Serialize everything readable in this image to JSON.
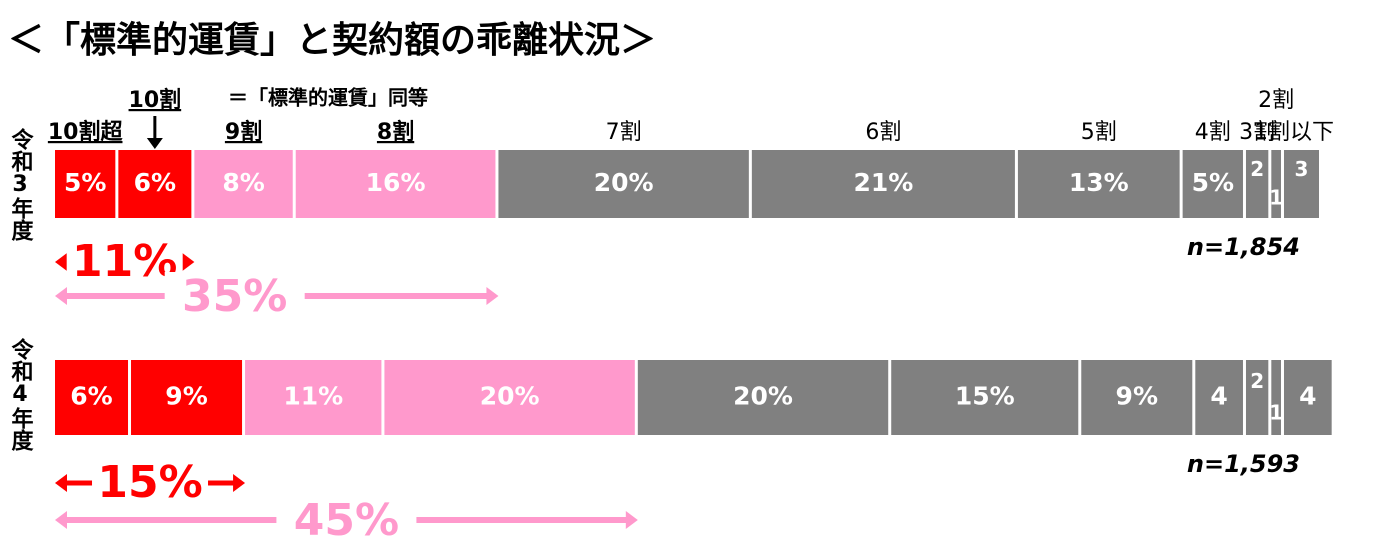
{
  "chart_data": {
    "type": "stacked-bar",
    "title": "＜「標準的運賃」と契約額の乖離状況＞",
    "note": "＝「標準的運賃」同等",
    "categories": [
      "10割超",
      "10割",
      "9割",
      "8割",
      "7割",
      "6割",
      "5割",
      "4割",
      "3割",
      "2割",
      "1割以下"
    ],
    "colors": [
      "#ff0000",
      "#ff0000",
      "#ff99cc",
      "#ff99cc",
      "#808080",
      "#808080",
      "#808080",
      "#808080",
      "#808080",
      "#808080",
      "#808080"
    ],
    "xlim": [
      0,
      100
    ],
    "series": [
      {
        "name": "令和3年度",
        "values": [
          5,
          6,
          8,
          16,
          20,
          21,
          13,
          5,
          2,
          1,
          3
        ],
        "value_labels": [
          "5%",
          "6%",
          "8%",
          "16%",
          "20%",
          "21%",
          "13%",
          "5%",
          "2",
          "1",
          "3"
        ],
        "n_label": "n=1,854",
        "share_labels": [
          "11%",
          "35%"
        ]
      },
      {
        "name": "令和4年度",
        "values": [
          6,
          9,
          11,
          20,
          20,
          15,
          9,
          4,
          2,
          1,
          4
        ],
        "value_labels": [
          "6%",
          "9%",
          "11%",
          "20%",
          "20%",
          "15%",
          "9%",
          "4",
          "2",
          "1",
          "4"
        ],
        "n_label": "n=1,593",
        "share_labels": [
          "15%",
          "45%"
        ]
      }
    ]
  }
}
